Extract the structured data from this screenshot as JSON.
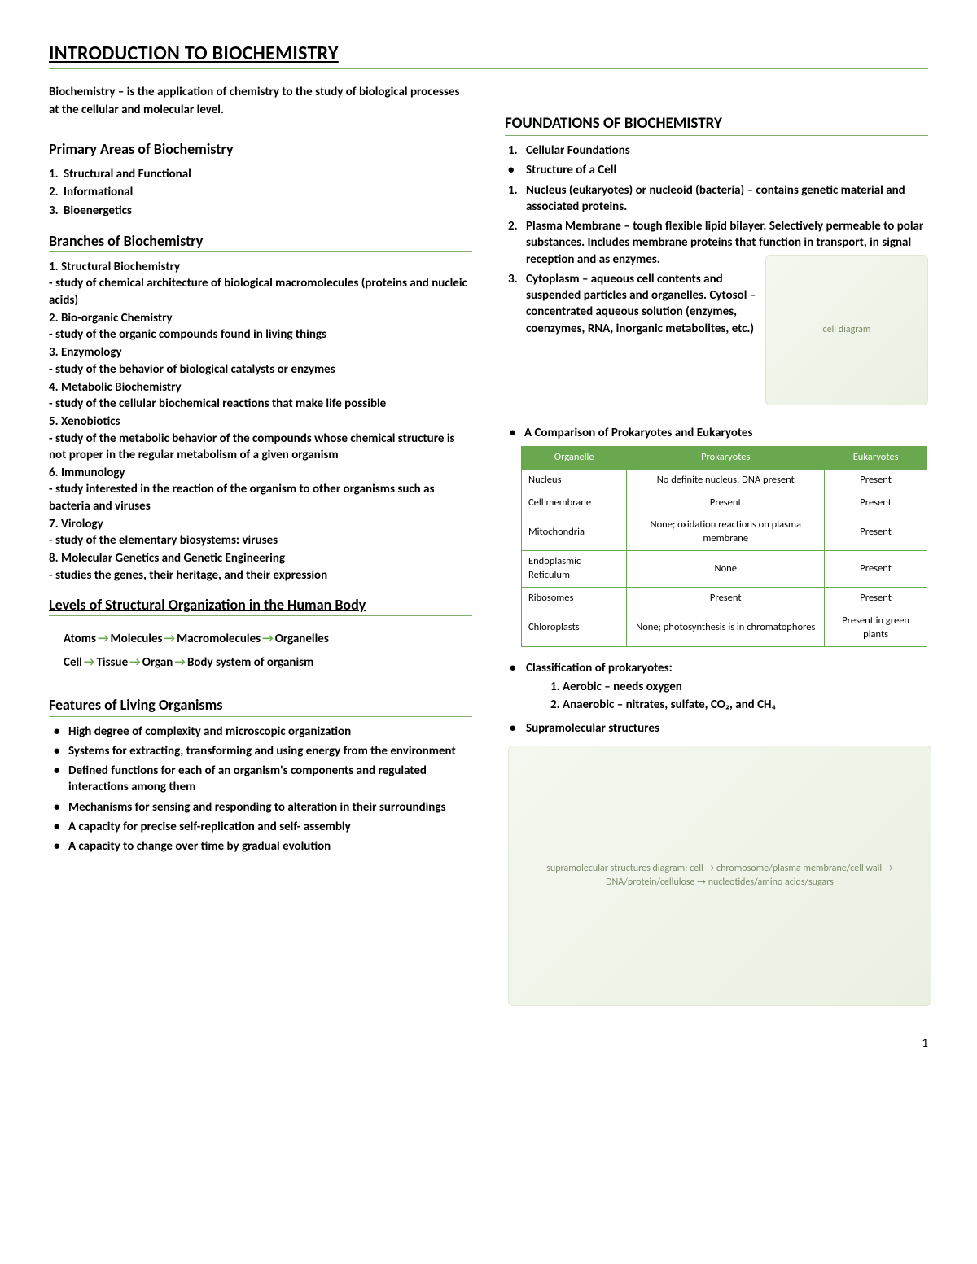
{
  "title": "INTRODUCTION TO BIOCHEMISTRY",
  "accent_color": "#6aa84f",
  "definition": "Biochemistry – is the application of chemistry to the study of biological processes at the cellular and molecular level.",
  "primary_areas": {
    "heading": "Primary Areas of Biochemistry",
    "items": [
      "Structural and Functional",
      "Informational",
      "Bioenergetics"
    ]
  },
  "branches": {
    "heading": "Branches of Biochemistry",
    "items": [
      {
        "n": "1.",
        "t": "Structural Biochemistry",
        "d": "-  study of chemical architecture of biological macromolecules (proteins and nucleic acids)"
      },
      {
        "n": "2.",
        "t": "Bio-organic Chemistry",
        "d": "- study of the organic compounds found in living things"
      },
      {
        "n": "3.",
        "t": "Enzymology",
        "d": "- study of the behavior of biological catalysts or enzymes"
      },
      {
        "n": "4.",
        "t": "Metabolic Biochemistry",
        "d": "- study of the cellular biochemical reactions that make life possible"
      },
      {
        "n": "5.",
        "t": "Xenobiotics",
        "d": "- study of the metabolic behavior of the compounds whose chemical structure is not proper in the regular metabolism of a given organism"
      },
      {
        "n": "6.",
        "t": "Immunology",
        "d": "- study interested in the reaction of the organism to other organisms such as bacteria and viruses"
      },
      {
        "n": "7.",
        "t": "Virology",
        "d": "- study of the elementary biosystems: viruses"
      },
      {
        "n": "8.",
        "t": "Molecular Genetics and Genetic Engineering",
        "d": "- studies the genes, their heritage, and their expression"
      }
    ]
  },
  "levels": {
    "heading": "Levels of Structural Organization in the Human Body",
    "row1": [
      "Atoms",
      "Molecules",
      "Macromolecules",
      "Organelles"
    ],
    "row2": [
      "Cell",
      "Tissue",
      "Organ",
      "Body system of organism"
    ]
  },
  "features": {
    "heading": "Features of Living Organisms",
    "items": [
      "High degree of complexity and microscopic organization",
      "Systems for extracting, transforming and using energy from the environment",
      "Defined functions for each of an organism's components and regulated interactions among them",
      "Mechanisms for sensing and responding to alteration in their surroundings",
      "A capacity for precise self-replication and self- assembly",
      "A capacity to change over time by gradual evolution"
    ]
  },
  "foundations": {
    "heading": "FOUNDATIONS OF BIOCHEMISTRY",
    "lines": [
      {
        "mk": "1.",
        "t": "Cellular Foundations"
      },
      {
        "mk": "•",
        "t": "Structure of a Cell"
      },
      {
        "mk": "1.",
        "t": "Nucleus (eukaryotes) or nucleoid (bacteria) – contains genetic material and associated proteins."
      },
      {
        "mk": "2.",
        "t": "Plasma Membrane – tough flexible lipid bilayer. Selectively permeable to polar substances. Includes membrane proteins that function in transport, in signal reception and as enzymes."
      },
      {
        "mk": "3.",
        "t": "Cytoplasm – aqueous cell contents and suspended particles and organelles. Cytosol – concentrated aqueous solution (enzymes, coenzymes, RNA, inorganic metabolites, etc.)"
      }
    ],
    "cell_image_alt": "cell diagram"
  },
  "comparison": {
    "heading": "A Comparison of Prokaryotes and Eukaryotes",
    "columns": [
      "Organelle",
      "Prokaryotes",
      "Eukaryotes"
    ],
    "header_bg": "#6aa84f",
    "header_fg": "#ffffff",
    "border_color": "#6aa84f",
    "rows": [
      [
        "Nucleus",
        "No definite nucleus; DNA present",
        "Present"
      ],
      [
        "Cell membrane",
        "Present",
        "Present"
      ],
      [
        "Mitochondria",
        "None; oxidation reactions on plasma membrane",
        "Present"
      ],
      [
        "Endoplasmic Reticulum",
        "None",
        "Present"
      ],
      [
        "Ribosomes",
        "Present",
        "Present"
      ],
      [
        "Chloroplasts",
        "None; photosynthesis is in chromatophores",
        "Present in green plants"
      ]
    ]
  },
  "classification": {
    "heading": "Classification of prokaryotes:",
    "items": [
      "1. Aerobic – needs oxygen",
      "2. Anaerobic – nitrates, sulfate, CO₂, and CH₄"
    ],
    "supra": "Supramolecular structures",
    "supra_image_alt": "supramolecular structures diagram: cell → chromosome/plasma membrane/cell wall → DNA/protein/cellulose → nucleotides/amino acids/sugars"
  },
  "page_number": "1"
}
